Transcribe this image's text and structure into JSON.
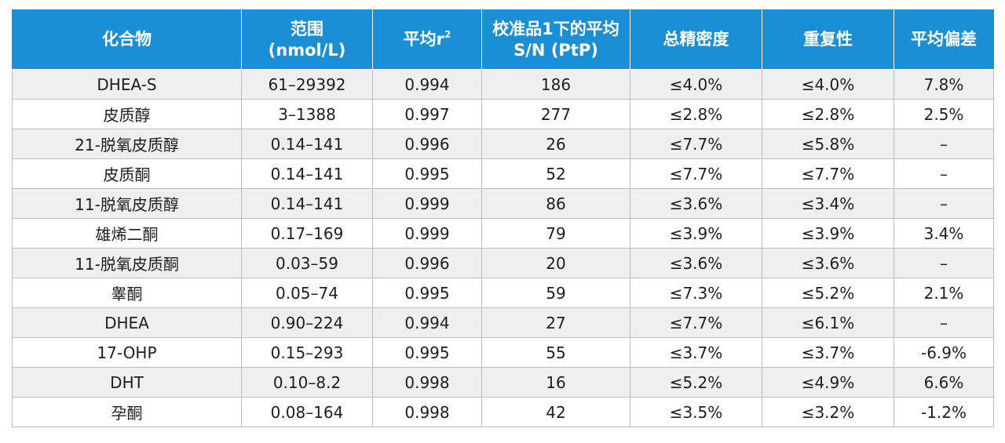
{
  "table": {
    "headers": [
      {
        "line1": "化合物",
        "line2": ""
      },
      {
        "line1": "范围",
        "line2": "(nmol/L)"
      },
      {
        "line1": "平均r",
        "sup": "2"
      },
      {
        "line1": "校准品1下的平均",
        "line2": "S/N (PtP)"
      },
      {
        "line1": "总精密度",
        "line2": ""
      },
      {
        "line1": "重复性",
        "line2": ""
      },
      {
        "line1": "平均偏差",
        "line2": ""
      }
    ],
    "rows": [
      [
        "DHEA-S",
        "61–29392",
        "0.994",
        "186",
        "≤4.0%",
        "≤4.0%",
        "7.8%"
      ],
      [
        "皮质醇",
        "3–1388",
        "0.997",
        "277",
        "≤2.8%",
        "≤2.8%",
        "2.5%"
      ],
      [
        "21-脱氧皮质醇",
        "0.14–141",
        "0.996",
        "26",
        "≤7.7%",
        "≤5.8%",
        "–"
      ],
      [
        "皮质酮",
        "0.14–141",
        "0.995",
        "52",
        "≤7.7%",
        "≤7.7%",
        "–"
      ],
      [
        "11-脱氧皮质醇",
        "0.14–141",
        "0.999",
        "86",
        "≤3.6%",
        "≤3.4%",
        "–"
      ],
      [
        "雄烯二酮",
        "0.17–169",
        "0.999",
        "79",
        "≤3.9%",
        "≤3.9%",
        "3.4%"
      ],
      [
        "11-脱氧皮质酮",
        "0.03–59",
        "0.996",
        "20",
        "≤3.6%",
        "≤3.6%",
        "–"
      ],
      [
        "睾酮",
        "0.05–74",
        "0.995",
        "59",
        "≤7.3%",
        "≤5.2%",
        "2.1%"
      ],
      [
        "DHEA",
        "0.90–224",
        "0.994",
        "27",
        "≤7.7%",
        "≤6.1%",
        "–"
      ],
      [
        "17-OHP",
        "0.15–293",
        "0.995",
        "55",
        "≤3.7%",
        "≤3.7%",
        "-6.9%"
      ],
      [
        "DHT",
        "0.10–8.2",
        "0.998",
        "16",
        "≤5.2%",
        "≤4.9%",
        "6.6%"
      ],
      [
        "孕酮",
        "0.08–164",
        "0.998",
        "42",
        "≤3.5%",
        "≤3.2%",
        "-1.2%"
      ]
    ]
  }
}
